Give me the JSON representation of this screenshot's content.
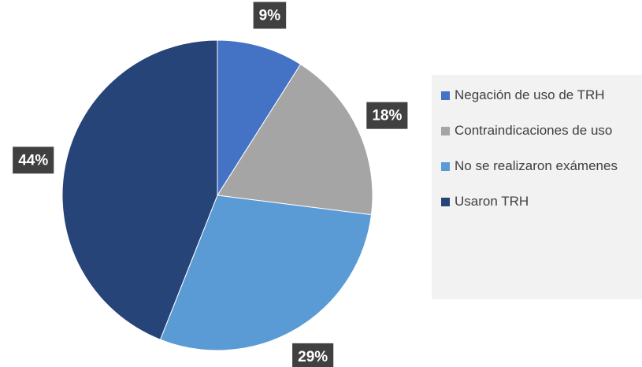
{
  "chart_data": {
    "type": "pie",
    "categories": [
      "Negación de uso de TRH",
      "Contraindicaciones de uso",
      "No se realizaron exámenes",
      "Usaron TRH"
    ],
    "values": [
      9,
      18,
      29,
      44
    ],
    "value_labels": [
      "9%",
      "18%",
      "29%",
      "44%"
    ],
    "colors": [
      "#4472c4",
      "#a5a5a5",
      "#5b9bd5",
      "#264478"
    ],
    "legend": "right"
  }
}
